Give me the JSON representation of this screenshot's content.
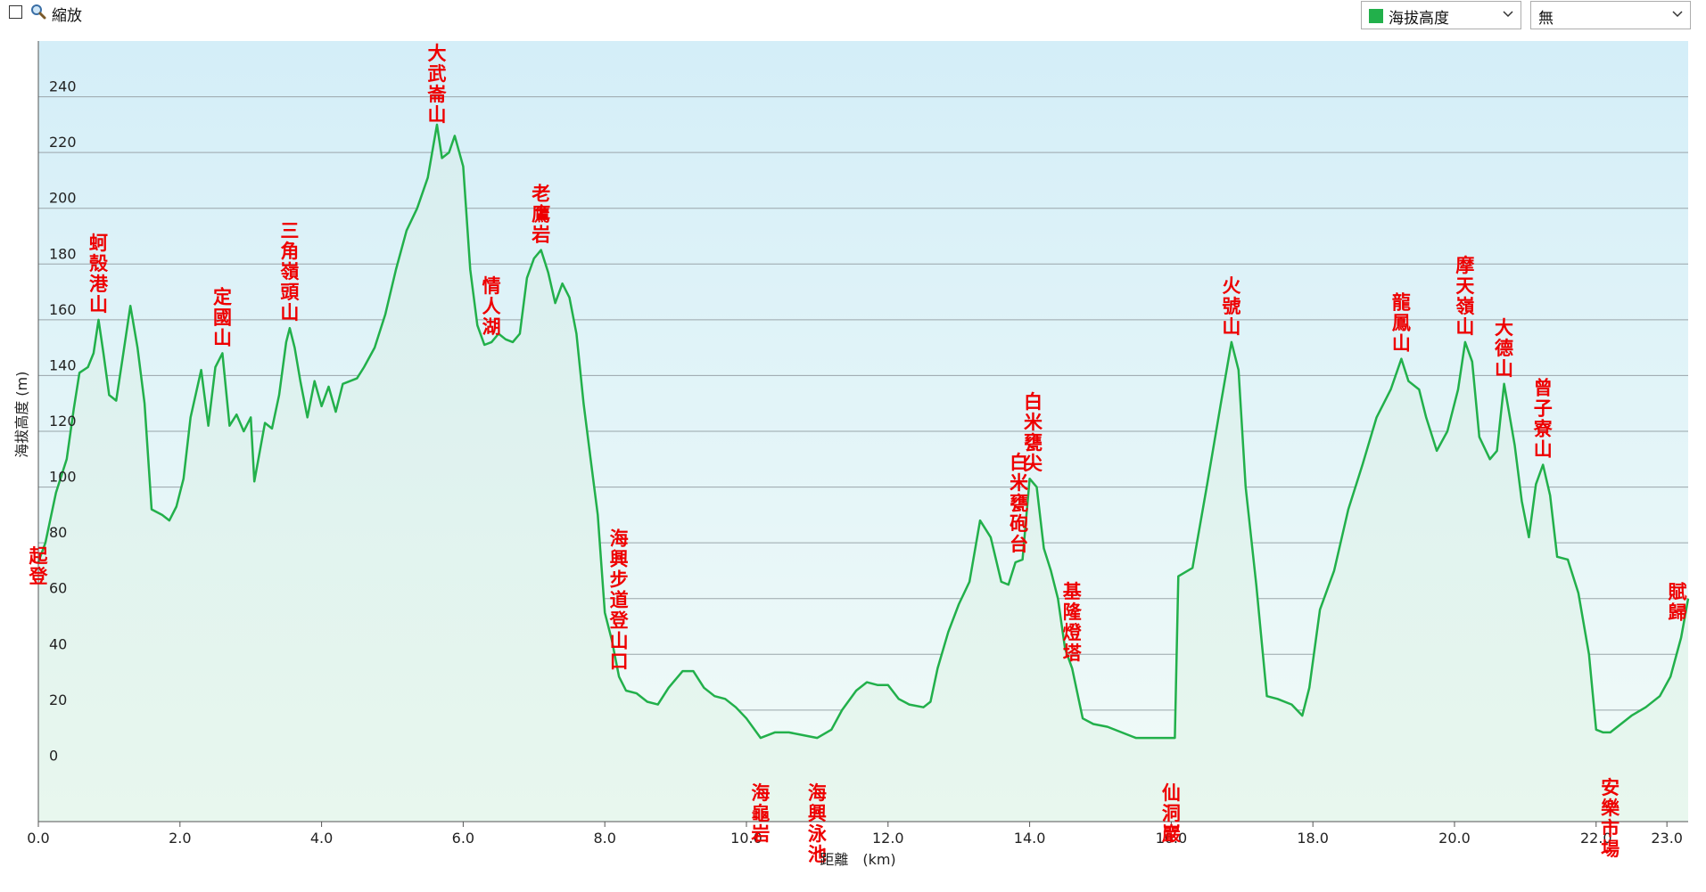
{
  "toolbar": {
    "zoom_label": "縮放",
    "zoom_checked": false,
    "series_select": "海拔高度",
    "secondary_select": "無"
  },
  "colors": {
    "line": "#22b04b",
    "fill_top": "#d8eef0",
    "fill_bottom": "#e8f7ee",
    "bg_top": "#d4eef8",
    "bg_bottom": "#f2fbf8",
    "grid": "#9aa5aa",
    "annotation": "#ee0000"
  },
  "chart_data": {
    "type": "area",
    "title": "",
    "xlabel": "距離　(km)",
    "ylabel": "海拔高度 (m)",
    "xlim": [
      0,
      23.3
    ],
    "ylim": [
      -20,
      260
    ],
    "x_ticks": [
      0,
      2,
      4,
      6,
      8,
      10,
      12,
      14,
      16,
      18,
      20,
      22,
      23
    ],
    "x_tick_labels": [
      "0.0",
      "2.0",
      "4.0",
      "6.0",
      "8.0",
      "10.0",
      "12.0",
      "14.0",
      "16.0",
      "18.0",
      "20.0",
      "22.0",
      "23.0"
    ],
    "y_ticks": [
      0,
      20,
      40,
      60,
      80,
      100,
      120,
      140,
      160,
      180,
      200,
      220,
      240
    ],
    "y_tick_labels": [
      "0",
      "20",
      "40",
      "60",
      "80",
      "100",
      "120",
      "140",
      "160",
      "180",
      "200",
      "220",
      "240"
    ],
    "grid": true,
    "series": [
      {
        "points": [
          [
            0,
            73
          ],
          [
            0.1,
            80
          ],
          [
            0.25,
            98
          ],
          [
            0.4,
            110
          ],
          [
            0.5,
            128
          ],
          [
            0.58,
            141
          ],
          [
            0.7,
            143
          ],
          [
            0.78,
            148
          ],
          [
            0.85,
            160
          ],
          [
            0.92,
            148
          ],
          [
            1.0,
            133
          ],
          [
            1.1,
            131
          ],
          [
            1.2,
            148
          ],
          [
            1.3,
            165
          ],
          [
            1.4,
            150
          ],
          [
            1.5,
            130
          ],
          [
            1.6,
            92
          ],
          [
            1.75,
            90
          ],
          [
            1.85,
            88
          ],
          [
            1.95,
            93
          ],
          [
            2.05,
            103
          ],
          [
            2.15,
            125
          ],
          [
            2.3,
            142
          ],
          [
            2.4,
            122
          ],
          [
            2.5,
            143
          ],
          [
            2.6,
            148
          ],
          [
            2.7,
            122
          ],
          [
            2.8,
            126
          ],
          [
            2.9,
            120
          ],
          [
            3.0,
            125
          ],
          [
            3.05,
            102
          ],
          [
            3.2,
            123
          ],
          [
            3.3,
            121
          ],
          [
            3.4,
            133
          ],
          [
            3.5,
            152
          ],
          [
            3.55,
            157
          ],
          [
            3.62,
            150
          ],
          [
            3.7,
            138
          ],
          [
            3.8,
            125
          ],
          [
            3.9,
            138
          ],
          [
            4.0,
            129
          ],
          [
            4.1,
            136
          ],
          [
            4.2,
            127
          ],
          [
            4.3,
            137
          ],
          [
            4.4,
            138
          ],
          [
            4.5,
            139
          ],
          [
            4.6,
            143
          ],
          [
            4.75,
            150
          ],
          [
            4.9,
            162
          ],
          [
            5.05,
            178
          ],
          [
            5.2,
            192
          ],
          [
            5.35,
            200
          ],
          [
            5.5,
            211
          ],
          [
            5.63,
            230
          ],
          [
            5.7,
            218
          ],
          [
            5.8,
            220
          ],
          [
            5.88,
            226
          ],
          [
            6.0,
            215
          ],
          [
            6.1,
            178
          ],
          [
            6.2,
            158
          ],
          [
            6.3,
            151
          ],
          [
            6.4,
            152
          ],
          [
            6.5,
            155
          ],
          [
            6.6,
            153
          ],
          [
            6.7,
            152
          ],
          [
            6.8,
            155
          ],
          [
            6.9,
            175
          ],
          [
            7.0,
            182
          ],
          [
            7.1,
            185
          ],
          [
            7.2,
            177
          ],
          [
            7.3,
            166
          ],
          [
            7.4,
            173
          ],
          [
            7.5,
            168
          ],
          [
            7.6,
            155
          ],
          [
            7.7,
            130
          ],
          [
            7.8,
            110
          ],
          [
            7.9,
            90
          ],
          [
            8.0,
            55
          ],
          [
            8.1,
            45
          ],
          [
            8.2,
            32
          ],
          [
            8.3,
            27
          ],
          [
            8.45,
            26
          ],
          [
            8.6,
            23
          ],
          [
            8.75,
            22
          ],
          [
            8.9,
            28
          ],
          [
            9.0,
            31
          ],
          [
            9.1,
            34
          ],
          [
            9.25,
            34
          ],
          [
            9.4,
            28
          ],
          [
            9.55,
            25
          ],
          [
            9.7,
            24
          ],
          [
            9.85,
            21
          ],
          [
            10.0,
            17
          ],
          [
            10.2,
            10
          ],
          [
            10.4,
            12
          ],
          [
            10.6,
            12
          ],
          [
            10.8,
            11
          ],
          [
            11.0,
            10
          ],
          [
            11.2,
            13
          ],
          [
            11.35,
            20
          ],
          [
            11.55,
            27
          ],
          [
            11.7,
            30
          ],
          [
            11.85,
            29
          ],
          [
            12.0,
            29
          ],
          [
            12.15,
            24
          ],
          [
            12.3,
            22
          ],
          [
            12.5,
            21
          ],
          [
            12.6,
            23
          ],
          [
            12.7,
            35
          ],
          [
            12.85,
            48
          ],
          [
            13.0,
            58
          ],
          [
            13.15,
            66
          ],
          [
            13.3,
            88
          ],
          [
            13.45,
            82
          ],
          [
            13.6,
            66
          ],
          [
            13.7,
            65
          ],
          [
            13.8,
            73
          ],
          [
            13.9,
            74
          ],
          [
            14.0,
            103
          ],
          [
            14.1,
            100
          ],
          [
            14.2,
            78
          ],
          [
            14.3,
            70
          ],
          [
            14.4,
            60
          ],
          [
            14.5,
            42
          ],
          [
            14.6,
            35
          ],
          [
            14.75,
            17
          ],
          [
            14.9,
            15
          ],
          [
            15.1,
            14
          ],
          [
            15.3,
            12
          ],
          [
            15.5,
            10
          ],
          [
            15.7,
            10
          ],
          [
            15.9,
            10
          ],
          [
            16.05,
            10
          ],
          [
            16.1,
            68
          ],
          [
            16.3,
            71
          ],
          [
            16.5,
            100
          ],
          [
            16.7,
            130
          ],
          [
            16.85,
            152
          ],
          [
            16.95,
            142
          ],
          [
            17.05,
            100
          ],
          [
            17.2,
            65
          ],
          [
            17.35,
            25
          ],
          [
            17.5,
            24
          ],
          [
            17.7,
            22
          ],
          [
            17.85,
            18
          ],
          [
            17.95,
            28
          ],
          [
            18.1,
            56
          ],
          [
            18.3,
            70
          ],
          [
            18.5,
            92
          ],
          [
            18.7,
            108
          ],
          [
            18.9,
            125
          ],
          [
            19.1,
            135
          ],
          [
            19.25,
            146
          ],
          [
            19.35,
            138
          ],
          [
            19.5,
            135
          ],
          [
            19.6,
            125
          ],
          [
            19.75,
            113
          ],
          [
            19.9,
            120
          ],
          [
            20.05,
            135
          ],
          [
            20.15,
            152
          ],
          [
            20.25,
            145
          ],
          [
            20.35,
            118
          ],
          [
            20.5,
            110
          ],
          [
            20.6,
            113
          ],
          [
            20.7,
            137
          ],
          [
            20.85,
            115
          ],
          [
            20.95,
            95
          ],
          [
            21.05,
            82
          ],
          [
            21.15,
            101
          ],
          [
            21.25,
            108
          ],
          [
            21.35,
            97
          ],
          [
            21.45,
            75
          ],
          [
            21.6,
            74
          ],
          [
            21.75,
            62
          ],
          [
            21.9,
            40
          ],
          [
            22.0,
            13
          ],
          [
            22.1,
            12
          ],
          [
            22.2,
            12
          ],
          [
            22.35,
            15
          ],
          [
            22.5,
            18
          ],
          [
            22.7,
            21
          ],
          [
            22.9,
            25
          ],
          [
            23.05,
            32
          ],
          [
            23.2,
            46
          ],
          [
            23.3,
            60
          ]
        ]
      }
    ],
    "annotations": [
      {
        "text": "起登",
        "x": 0.0,
        "y": 73
      },
      {
        "text": "蚵殼港山",
        "x": 0.85,
        "y": 160
      },
      {
        "text": "定國山",
        "x": 2.6,
        "y": 148
      },
      {
        "text": "三角嶺頭山",
        "x": 3.55,
        "y": 157
      },
      {
        "text": "大武崙山",
        "x": 5.63,
        "y": 230
      },
      {
        "text": "情人湖",
        "x": 6.4,
        "y": 152
      },
      {
        "text": "老鷹岩",
        "x": 7.1,
        "y": 185
      },
      {
        "text": "海興步道登山口",
        "x": 8.2,
        "y": 32
      },
      {
        "text": "海龜岩",
        "x": 10.2,
        "y": 10
      },
      {
        "text": "海興泳池",
        "x": 11.0,
        "y": 10
      },
      {
        "text": "白米甕砲台",
        "x": 13.85,
        "y": 74
      },
      {
        "text": "白米甕尖",
        "x": 14.05,
        "y": 103
      },
      {
        "text": "基隆燈塔",
        "x": 14.6,
        "y": 35
      },
      {
        "text": "仙洞巖",
        "x": 16.0,
        "y": 10
      },
      {
        "text": "火號山",
        "x": 16.85,
        "y": 152
      },
      {
        "text": "龍鳳山",
        "x": 19.25,
        "y": 146
      },
      {
        "text": "摩天嶺山",
        "x": 20.15,
        "y": 152
      },
      {
        "text": "大德山",
        "x": 20.7,
        "y": 137
      },
      {
        "text": "曾子寮山",
        "x": 21.25,
        "y": 108
      },
      {
        "text": "安樂市場",
        "x": 22.2,
        "y": 12
      },
      {
        "text": "賦歸",
        "x": 23.3,
        "y": 60
      }
    ]
  }
}
